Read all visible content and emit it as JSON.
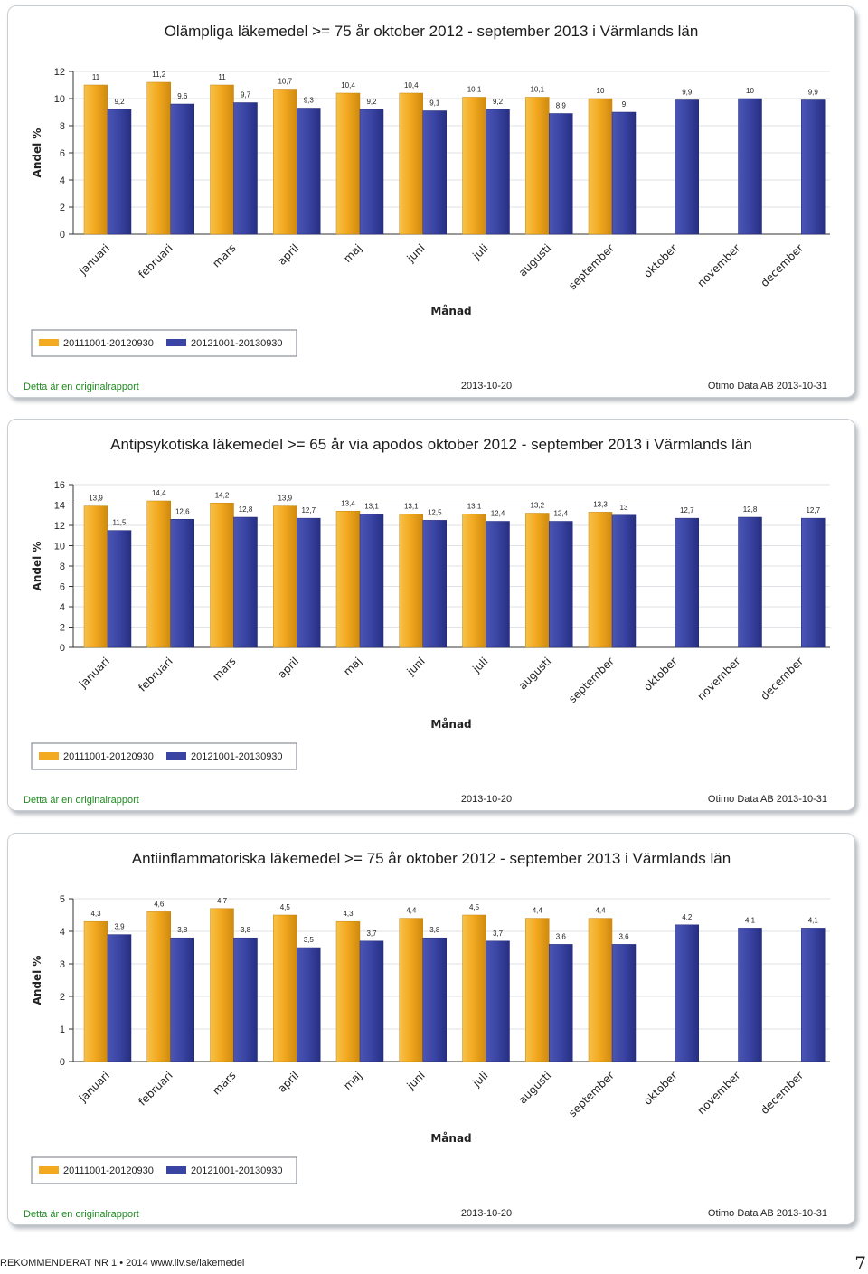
{
  "charts": [
    {
      "chart_data": {
        "type": "bar",
        "title": "Olämpliga läkemedel >= 75 år oktober 2012 - september 2013 i Värmlands län",
        "ylabel": "Andel %",
        "xlabel": "Månad",
        "ylim": [
          0,
          12
        ],
        "yticks": [
          0,
          2,
          4,
          6,
          8,
          10,
          12
        ],
        "grid": true,
        "legend": "bottom-left",
        "categories": [
          "januari",
          "februari",
          "mars",
          "april",
          "maj",
          "juni",
          "juli",
          "augusti",
          "september",
          "oktober",
          "november",
          "december"
        ],
        "series": [
          {
            "name": "20111001-20120930",
            "color": "#f2a81d",
            "values": [
              11,
              11.2,
              11,
              10.7,
              10.4,
              10.4,
              10.1,
              10.1,
              10,
              null,
              null,
              null
            ],
            "labels": [
              "11",
              "11,2",
              "11",
              "10,7",
              "10,4",
              "10,4",
              "10,1",
              "10,1",
              "10",
              "",
              "",
              ""
            ]
          },
          {
            "name": "20121001-20130930",
            "color": "#3b45a4",
            "values": [
              9.2,
              9.6,
              9.7,
              9.3,
              9.2,
              9.1,
              9.2,
              8.9,
              9,
              9.9,
              10,
              9.9
            ],
            "labels": [
              "9,2",
              "9,6",
              "9,7",
              "9,3",
              "9,2",
              "9,1",
              "9,2",
              "8,9",
              "9",
              "9,9",
              "10",
              "9,9"
            ]
          }
        ]
      },
      "notes": {
        "original": "Detta är en originalrapport",
        "date": "2013-10-20",
        "source": "Otimo Data AB 2013-10-31"
      }
    },
    {
      "chart_data": {
        "type": "bar",
        "title": "Antipsykotiska läkemedel >= 65 år via apodos oktober 2012 - september 2013 i Värmlands län",
        "ylabel": "Andel %",
        "xlabel": "Månad",
        "ylim": [
          0,
          16
        ],
        "yticks": [
          0,
          2,
          4,
          6,
          8,
          10,
          12,
          14,
          16
        ],
        "grid": true,
        "legend": "bottom-left",
        "categories": [
          "januari",
          "februari",
          "mars",
          "april",
          "maj",
          "juni",
          "juli",
          "augusti",
          "september",
          "oktober",
          "november",
          "december"
        ],
        "series": [
          {
            "name": "20111001-20120930",
            "color": "#f2a81d",
            "values": [
              13.9,
              14.4,
              14.2,
              13.9,
              13.4,
              13.1,
              13.1,
              13.2,
              13.3,
              null,
              null,
              null
            ],
            "labels": [
              "13,9",
              "14,4",
              "14,2",
              "13,9",
              "13,4",
              "13,1",
              "13,1",
              "13,2",
              "13,3",
              "",
              "",
              ""
            ]
          },
          {
            "name": "20121001-20130930",
            "color": "#3b45a4",
            "values": [
              11.5,
              12.6,
              12.8,
              12.7,
              13.1,
              12.5,
              12.4,
              12.4,
              13,
              12.7,
              12.8,
              12.7
            ],
            "labels": [
              "11,5",
              "12,6",
              "12,8",
              "12,7",
              "13,1",
              "12,5",
              "12,4",
              "12,4",
              "13",
              "12,7",
              "12,8",
              "12,7"
            ]
          }
        ]
      },
      "notes": {
        "original": "Detta är en originalrapport",
        "date": "2013-10-20",
        "source": "Otimo Data AB 2013-10-31"
      }
    },
    {
      "chart_data": {
        "type": "bar",
        "title": "Antiinflammatoriska läkemedel >= 75 år oktober 2012 - september 2013 i Värmlands län",
        "ylabel": "Andel %",
        "xlabel": "Månad",
        "ylim": [
          0,
          5
        ],
        "yticks": [
          0,
          1,
          2,
          3,
          4,
          5
        ],
        "grid": true,
        "legend": "bottom-left",
        "categories": [
          "januari",
          "februari",
          "mars",
          "april",
          "maj",
          "juni",
          "juli",
          "augusti",
          "september",
          "oktober",
          "november",
          "december"
        ],
        "series": [
          {
            "name": "20111001-20120930",
            "color": "#f2a81d",
            "values": [
              4.3,
              4.6,
              4.7,
              4.5,
              4.3,
              4.4,
              4.5,
              4.4,
              4.4,
              null,
              null,
              null
            ],
            "labels": [
              "4,3",
              "4,6",
              "4,7",
              "4,5",
              "4,3",
              "4,4",
              "4,5",
              "4,4",
              "4,4",
              "",
              "",
              ""
            ]
          },
          {
            "name": "20121001-20130930",
            "color": "#3b45a4",
            "values": [
              3.9,
              3.8,
              3.8,
              3.5,
              3.7,
              3.8,
              3.7,
              3.6,
              3.6,
              4.2,
              4.1,
              4.1
            ],
            "labels": [
              "3,9",
              "3,8",
              "3,8",
              "3,5",
              "3,7",
              "3,8",
              "3,7",
              "3,6",
              "3,6",
              "4,2",
              "4,1",
              "4,1"
            ]
          }
        ]
      },
      "notes": {
        "original": "Detta är en originalrapport",
        "date": "2013-10-20",
        "source": "Otimo Data AB 2013-10-31"
      }
    }
  ],
  "footer": {
    "text": "REKOMMENDERAT NR 1 • 2014   www.liv.se/lakemedel",
    "page": "7"
  }
}
